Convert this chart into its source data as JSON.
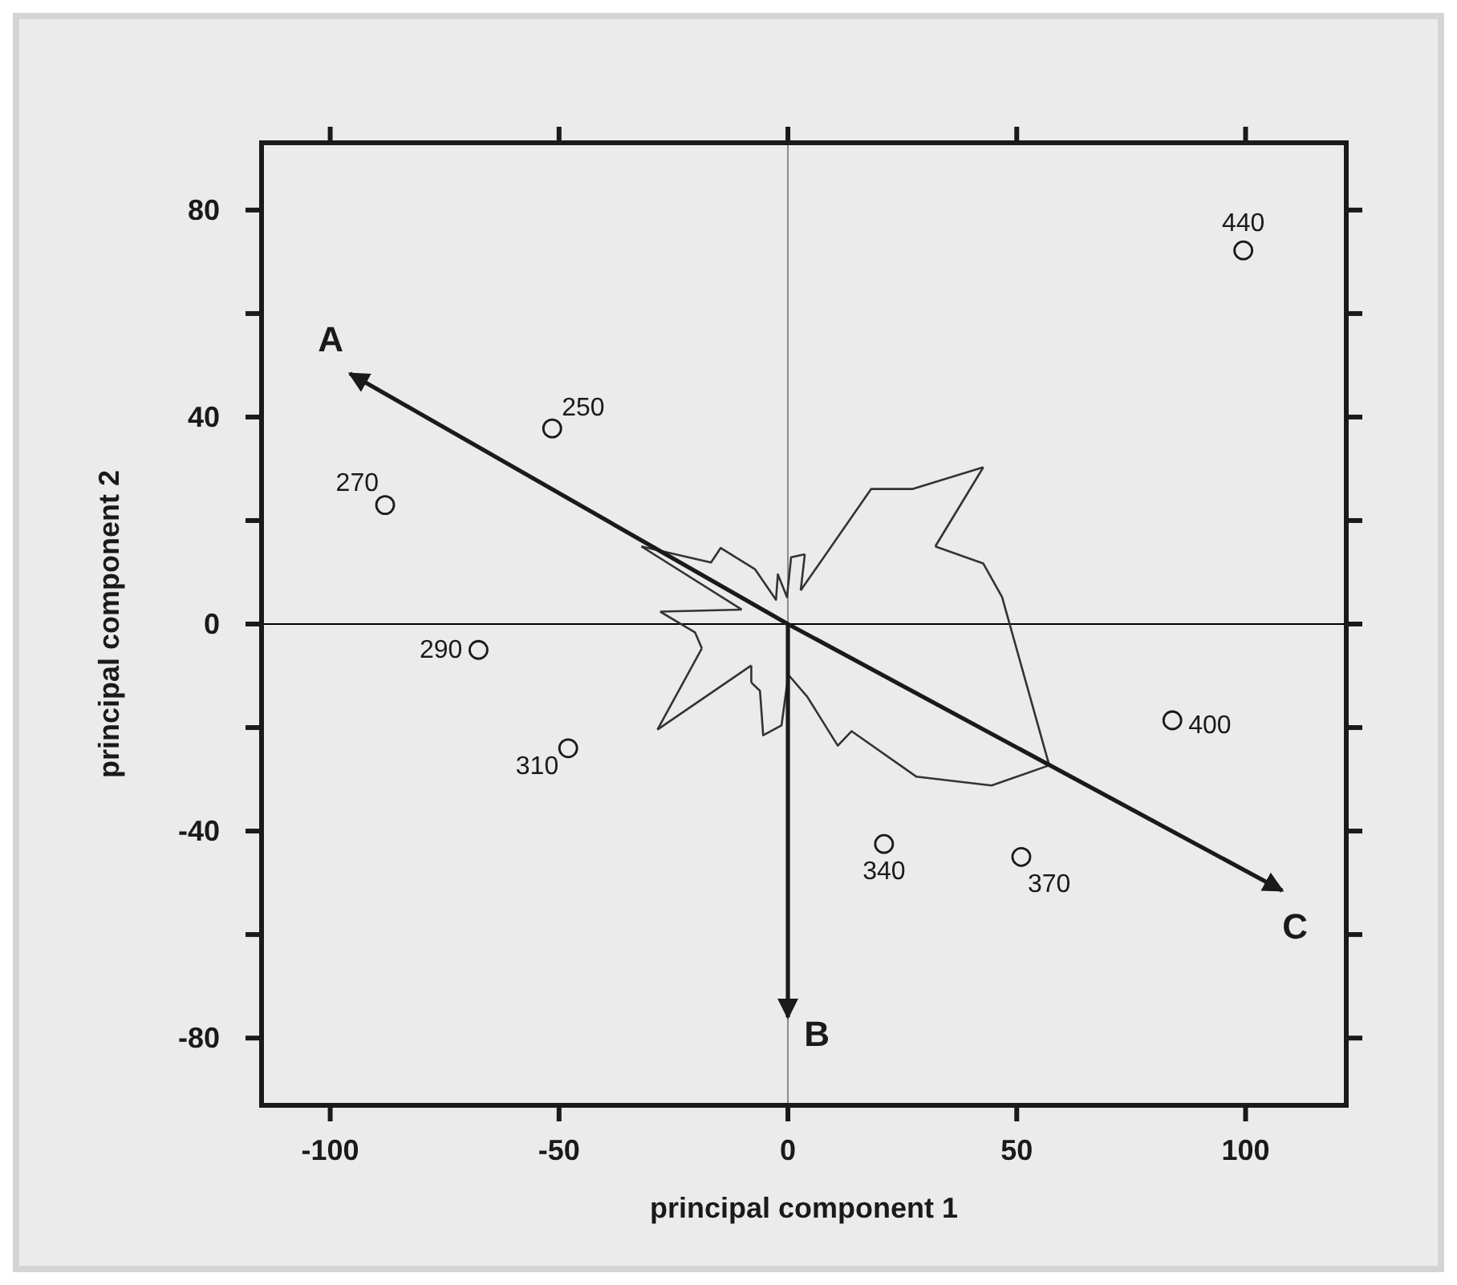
{
  "chart_data": {
    "type": "scatter",
    "xlabel": "principal component 1",
    "ylabel": "principal component 2",
    "xlim": [
      -115,
      122
    ],
    "ylim": [
      -93,
      93
    ],
    "xticks": [
      -100,
      -50,
      0,
      50,
      100
    ],
    "yticks": [
      {
        "value": -80,
        "label": "-80"
      },
      {
        "value": -60,
        "label": null
      },
      {
        "value": -40,
        "label": "-40"
      },
      {
        "value": -20,
        "label": null
      },
      0,
      {
        "value": 20,
        "label": null
      },
      40,
      {
        "value": 60,
        "label": null
      },
      80
    ],
    "grid": false,
    "ref_lines": [
      {
        "axis": "x",
        "value": 0,
        "color": "#8a8a8a"
      },
      {
        "axis": "y",
        "value": 0,
        "color": "#000000"
      }
    ],
    "series": [
      {
        "marker": "circle",
        "color": "#1a1a1a",
        "x": [
          -51.5,
          -88,
          -67.6,
          -48,
          21,
          51,
          84,
          99.5
        ],
        "values": [
          37.8,
          23,
          -5,
          -24,
          -42.5,
          -45,
          -18.6,
          72.2
        ]
      },
      {
        "type": "line",
        "marker": "none",
        "color": "#333333",
        "x": [
          -32.0,
          -16.8,
          -14.7,
          -7.2,
          -2.6,
          -2.2,
          -0.2,
          0.7,
          3.7
        ],
        "values": [
          15.0,
          11.9,
          14.7,
          10.6,
          4.7,
          9.6,
          5.2,
          12.9,
          13.5
        ]
      },
      {
        "type": "line",
        "marker": "none",
        "color": "#333333",
        "x": [
          3.7,
          2.8
        ],
        "values": [
          13.5,
          6.5
        ]
      },
      {
        "type": "line",
        "marker": "none",
        "color": "#333333",
        "x": [
          2.8,
          18.2,
          27.3,
          42.7
        ],
        "values": [
          6.5,
          26.1,
          26.1,
          30.3
        ]
      },
      {
        "type": "line",
        "marker": "none",
        "color": "#333333",
        "x": [
          42.7,
          32.2
        ],
        "values": [
          30.3,
          15.0
        ]
      },
      {
        "type": "line",
        "marker": "none",
        "color": "#333333",
        "x": [
          32.2,
          42.7,
          46.8,
          57.1
        ],
        "values": [
          15.0,
          11.7,
          5.2,
          -27.3
        ]
      },
      {
        "type": "line",
        "marker": "none",
        "color": "#333333",
        "x": [
          57.1,
          44.5,
          28.1,
          13.9,
          10.9,
          4.2,
          0.1,
          -1.4,
          -5.4,
          -6.1,
          -8.0
        ],
        "values": [
          -27.3,
          -31.2,
          -29.5,
          -20.7,
          -23.5,
          -14.0,
          -9.8,
          -19.6,
          -21.5,
          -12.9,
          -11.3
        ]
      },
      {
        "type": "line",
        "marker": "none",
        "color": "#333333",
        "x": [
          -8.0,
          -8.0
        ],
        "values": [
          -11.3,
          -8.0
        ]
      },
      {
        "type": "line",
        "marker": "none",
        "color": "#333333",
        "x": [
          -8.0,
          -28.5
        ],
        "values": [
          -8.0,
          -20.4
        ]
      },
      {
        "type": "line",
        "marker": "none",
        "color": "#333333",
        "x": [
          -28.5,
          -18.8
        ],
        "values": [
          -20.4,
          -4.7
        ]
      },
      {
        "type": "line",
        "marker": "none",
        "color": "#333333",
        "x": [
          -18.8,
          -20.3,
          -27.9
        ],
        "values": [
          -4.7,
          -1.6,
          2.4
        ]
      },
      {
        "type": "line",
        "marker": "none",
        "color": "#333333",
        "x": [
          -27.9,
          -10.1
        ],
        "values": [
          2.4,
          2.8
        ]
      },
      {
        "type": "line",
        "marker": "none",
        "color": "#333333",
        "x": [
          -10.1,
          -32.0
        ],
        "values": [
          2.8,
          15.0
        ]
      },
      {
        "type": "line",
        "marker": "none",
        "name": "A",
        "color": "#1a1a1a",
        "x": [
          0,
          -95.7
        ],
        "values": [
          0,
          48.4
        ]
      },
      {
        "type": "line",
        "marker": "none",
        "name": "B",
        "color": "#1a1a1a",
        "x": [
          0,
          0
        ],
        "values": [
          0,
          -76
        ]
      },
      {
        "type": "line",
        "marker": "none",
        "name": "C",
        "color": "#1a1a1a",
        "x": [
          0,
          108
        ],
        "values": [
          0,
          -51.5
        ]
      }
    ],
    "annotations": [
      {
        "text": "250",
        "x": -51.5,
        "y": 37.8
      },
      {
        "text": "270",
        "x": -88,
        "y": 23
      },
      {
        "text": "290",
        "x": -67.6,
        "y": -5
      },
      {
        "text": "310",
        "x": -48,
        "y": -24
      },
      {
        "text": "340",
        "x": 21,
        "y": -42.5
      },
      {
        "text": "370",
        "x": 51,
        "y": -45
      },
      {
        "text": "400",
        "x": 84,
        "y": -18.6
      },
      {
        "text": "440",
        "x": 99.5,
        "y": 72.2
      }
    ]
  }
}
